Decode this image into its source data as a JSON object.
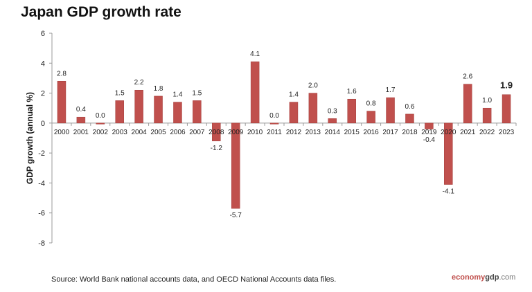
{
  "chart_data": {
    "type": "bar",
    "title": "Japan GDP growth rate",
    "ylabel": "GDP growth (annual %)",
    "xlabel": "",
    "ylim": [
      -8,
      6
    ],
    "yticks": [
      6,
      4,
      2,
      0,
      -2,
      -4,
      -6,
      -8
    ],
    "grid": false,
    "categories": [
      "2000",
      "2001",
      "2002",
      "2003",
      "2004",
      "2005",
      "2006",
      "2007",
      "2008",
      "2009",
      "2010",
      "2011",
      "2012",
      "2013",
      "2014",
      "2015",
      "2016",
      "2017",
      "2018",
      "2019",
      "2020",
      "2021",
      "2022",
      "2023"
    ],
    "values": [
      2.8,
      0.4,
      0.0,
      1.5,
      2.2,
      1.8,
      1.4,
      1.5,
      -1.2,
      -5.7,
      4.1,
      0.0,
      1.4,
      2.0,
      0.3,
      1.6,
      0.8,
      1.7,
      0.6,
      -0.4,
      -4.1,
      2.6,
      1.0,
      1.9
    ],
    "bar_color": "#c0504d",
    "source": "Source:  World Bank national accounts data, and OECD National Accounts data files."
  },
  "brand": {
    "part1": "economy",
    "part2": "gdp",
    "part3": ".com"
  }
}
